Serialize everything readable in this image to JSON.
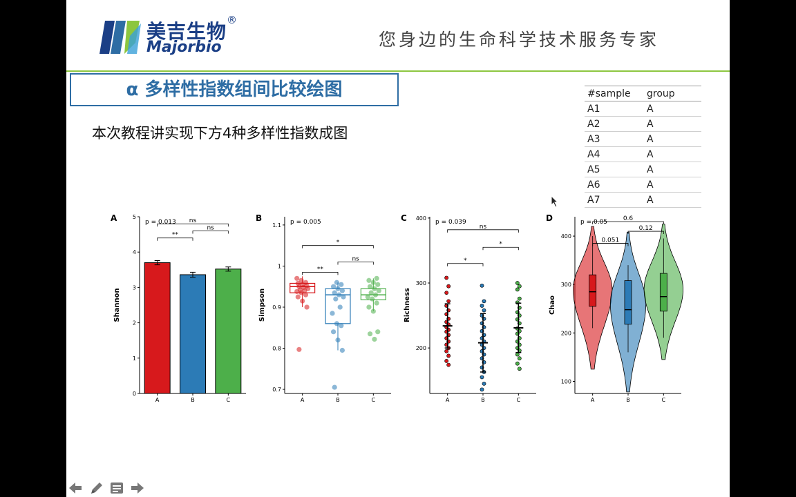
{
  "header": {
    "logo_cn": "美吉生物",
    "logo_en": "Majorbio",
    "logo_reg": "®",
    "slogan": "您身边的生命科学技术服务专家"
  },
  "title": "α 多样性指数组间比较绘图",
  "subtitle": "本次教程讲实现下方4种多样性指数成图",
  "table": {
    "headers": [
      "#sample",
      "group"
    ],
    "rows": [
      [
        "A1",
        "A"
      ],
      [
        "A2",
        "A"
      ],
      [
        "A3",
        "A"
      ],
      [
        "A4",
        "A"
      ],
      [
        "A5",
        "A"
      ],
      [
        "A6",
        "A"
      ],
      [
        "A7",
        "A"
      ]
    ]
  },
  "colors": {
    "A": "#d7191c",
    "B": "#2c7bb6",
    "C": "#4daf4a",
    "accent": "#2e6da4",
    "rule": "#8cc63f"
  },
  "chart_data": [
    {
      "panel": "A",
      "type": "bar",
      "categories": [
        "A",
        "B",
        "C"
      ],
      "values": [
        3.7,
        3.36,
        3.52
      ],
      "errors": [
        0.06,
        0.07,
        0.06
      ],
      "ylabel": "Shannon",
      "ylim": [
        0,
        5
      ],
      "yticks": [
        0,
        1,
        2,
        3,
        4,
        5
      ],
      "pvalue": "p = 0.013",
      "comparisons": [
        {
          "from": "A",
          "to": "B",
          "label": "**",
          "y": 4.4
        },
        {
          "from": "B",
          "to": "C",
          "label": "ns",
          "y": 4.6
        },
        {
          "from": "A",
          "to": "C",
          "label": "ns",
          "y": 4.8
        }
      ]
    },
    {
      "panel": "B",
      "type": "box",
      "categories": [
        "A",
        "B",
        "C"
      ],
      "boxes": [
        {
          "q1": 0.935,
          "median": 0.95,
          "q3": 0.958,
          "whisker_low": 0.9,
          "whisker_high": 0.975
        },
        {
          "q1": 0.86,
          "median": 0.93,
          "q3": 0.945,
          "whisker_low": 0.795,
          "whisker_high": 0.96
        },
        {
          "q1": 0.918,
          "median": 0.93,
          "q3": 0.945,
          "whisker_low": 0.89,
          "whisker_high": 0.97
        }
      ],
      "points": {
        "A": [
          0.97,
          0.965,
          0.96,
          0.958,
          0.955,
          0.952,
          0.95,
          0.948,
          0.945,
          0.942,
          0.94,
          0.938,
          0.935,
          0.93,
          0.925,
          0.915,
          0.9,
          0.797
        ],
        "B": [
          0.96,
          0.955,
          0.95,
          0.945,
          0.94,
          0.935,
          0.93,
          0.925,
          0.92,
          0.9,
          0.885,
          0.86,
          0.855,
          0.84,
          0.82,
          0.795,
          0.705
        ],
        "C": [
          0.97,
          0.965,
          0.96,
          0.955,
          0.95,
          0.945,
          0.94,
          0.935,
          0.93,
          0.925,
          0.92,
          0.91,
          0.9,
          0.89,
          0.84,
          0.835,
          0.822
        ]
      },
      "ylabel": "Simpson",
      "ylim": [
        0.69,
        1.12
      ],
      "yticks": [
        0.7,
        0.8,
        0.9,
        1.0,
        1.1
      ],
      "pvalue": "p = 0.005",
      "comparisons": [
        {
          "from": "A",
          "to": "B",
          "label": "**",
          "y": 0.985
        },
        {
          "from": "B",
          "to": "C",
          "label": "ns",
          "y": 1.01
        },
        {
          "from": "A",
          "to": "C",
          "label": "*",
          "y": 1.05
        }
      ]
    },
    {
      "panel": "C",
      "type": "scatter",
      "categories": [
        "A",
        "B",
        "C"
      ],
      "points": {
        "A": [
          308,
          295,
          285,
          272,
          265,
          258,
          252,
          245,
          240,
          236,
          232,
          228,
          225,
          220,
          215,
          210,
          205,
          200,
          195,
          188,
          180,
          174
        ],
        "B": [
          296,
          272,
          265,
          258,
          250,
          245,
          238,
          232,
          226,
          220,
          215,
          210,
          205,
          200,
          195,
          190,
          184,
          178,
          170,
          163,
          155,
          145,
          136
        ],
        "C": [
          300,
          295,
          290,
          276,
          270,
          262,
          255,
          250,
          244,
          238,
          230,
          226,
          222,
          215,
          210,
          205,
          200,
          196,
          190,
          184,
          176,
          168
        ]
      },
      "means": [
        234,
        208,
        231
      ],
      "sd": [
        34,
        45,
        38
      ],
      "ylabel": "Richness",
      "ylim": [
        130,
        402
      ],
      "yticks": [
        200,
        300,
        400
      ],
      "pvalue": "p = 0.039",
      "comparisons": [
        {
          "from": "A",
          "to": "B",
          "label": "*",
          "y": 330
        },
        {
          "from": "B",
          "to": "C",
          "label": "*",
          "y": 355
        },
        {
          "from": "A",
          "to": "C",
          "label": "ns",
          "y": 382
        }
      ]
    },
    {
      "panel": "D",
      "type": "violin",
      "categories": [
        "A",
        "B",
        "C"
      ],
      "violins": [
        {
          "min": 125,
          "max": 420,
          "peak": 290,
          "width": 0.55
        },
        {
          "min": 78,
          "max": 408,
          "peak": 260,
          "width": 0.5
        },
        {
          "min": 145,
          "max": 425,
          "peak": 290,
          "width": 0.55
        }
      ],
      "boxes": [
        {
          "q1": 255,
          "median": 285,
          "q3": 320,
          "whisker_low": 210,
          "whisker_high": 400
        },
        {
          "q1": 218,
          "median": 248,
          "q3": 308,
          "whisker_low": 160,
          "whisker_high": 340
        },
        {
          "q1": 245,
          "median": 275,
          "q3": 323,
          "whisker_low": 190,
          "whisker_high": 395
        }
      ],
      "ylabel": "Chao",
      "ylim": [
        75,
        440
      ],
      "yticks": [
        100,
        200,
        300,
        400
      ],
      "pvalue": "p = 0.05",
      "comparisons": [
        {
          "from": "A",
          "to": "B",
          "label": "0.051",
          "y": 385
        },
        {
          "from": "B",
          "to": "C",
          "label": "0.12",
          "y": 410
        },
        {
          "from": "A",
          "to": "C",
          "label": "0.6",
          "y": 430
        }
      ]
    }
  ],
  "nav": [
    "back-icon",
    "pen-icon",
    "menu-icon",
    "forward-icon"
  ]
}
